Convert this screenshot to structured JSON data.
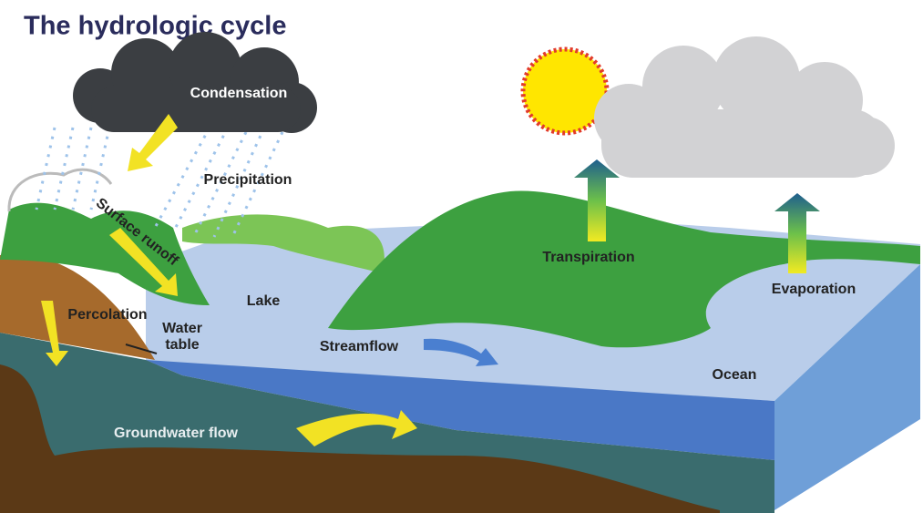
{
  "title": "The hydrologic cycle",
  "labels": [
    "Condensation",
    "Precipitation",
    "Surface runoff",
    "Percolation",
    "Water table",
    "Lake",
    "Streamflow",
    "Transpiration",
    "Evaporation",
    "Ocean",
    "Groundwater flow"
  ]
}
